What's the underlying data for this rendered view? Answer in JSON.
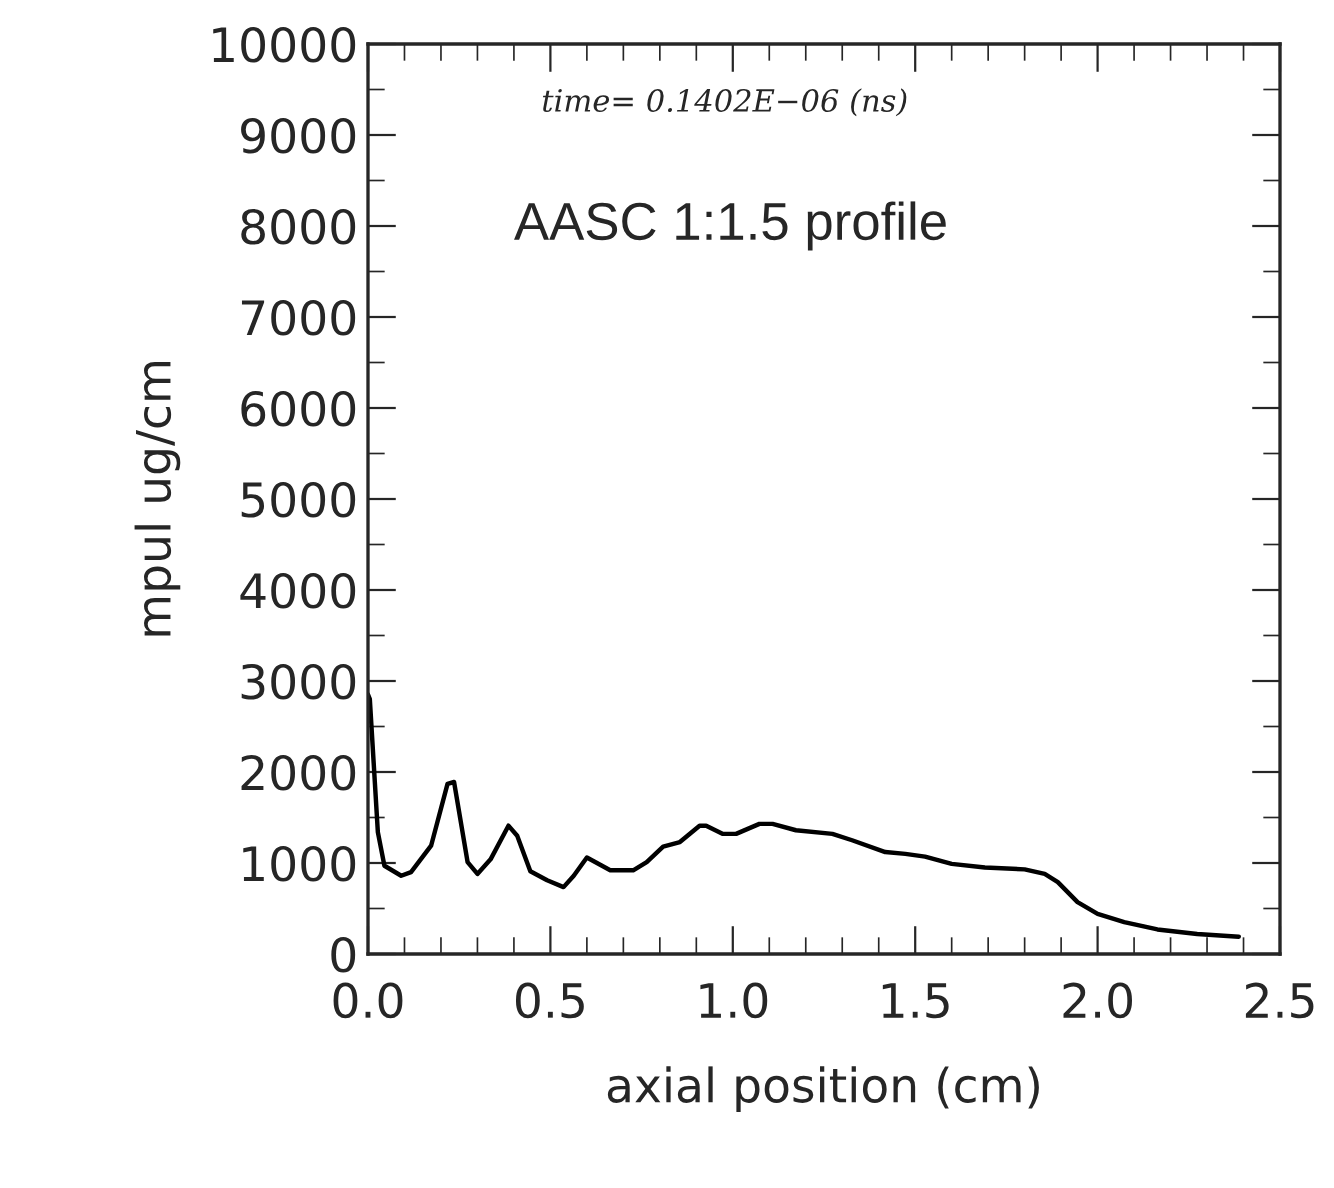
{
  "chart_data": {
    "type": "line",
    "xlabel": "axial position (cm)",
    "ylabel": "mpul ug/cm",
    "annotations": [
      "time= 0.1402E−06 (ns)",
      "AASC 1:1.5 profile"
    ],
    "xlim": [
      0,
      2.5
    ],
    "xticks": [
      {
        "value": 0,
        "label": "0.0"
      },
      {
        "value": 0.5,
        "label": "0.5"
      },
      {
        "value": 1,
        "label": "1.0"
      },
      {
        "value": 1.5,
        "label": "1.5"
      },
      {
        "value": 2,
        "label": "2.0"
      },
      {
        "value": 2.5,
        "label": "2.5"
      }
    ],
    "ylim": [
      0,
      10000
    ],
    "yticks": [
      0,
      1000,
      2000,
      3000,
      4000,
      5000,
      6000,
      7000,
      8000,
      9000,
      10000
    ],
    "grid": false,
    "legend": false,
    "marker": "none",
    "line_style": "solid",
    "series": [
      {
        "color": "#000000",
        "x": [
          0,
          0.005,
          0.027,
          0.045,
          0.091,
          0.118,
          0.173,
          0.218,
          0.236,
          0.273,
          0.3,
          0.336,
          0.385,
          0.409,
          0.445,
          0.491,
          0.536,
          0.564,
          0.6,
          0.664,
          0.727,
          0.764,
          0.809,
          0.855,
          0.909,
          0.927,
          0.973,
          1.009,
          1.073,
          1.109,
          1.173,
          1.273,
          1.327,
          1.418,
          1.473,
          1.527,
          1.6,
          1.691,
          1.8,
          1.855,
          1.891,
          1.945,
          2.0,
          2.073,
          2.164,
          2.273,
          2.387
        ],
        "values": [
          2850,
          2800,
          1340,
          970,
          860,
          900,
          1190,
          1870,
          1890,
          1010,
          880,
          1040,
          1410,
          1300,
          910,
          810,
          735,
          860,
          1060,
          920,
          920,
          1010,
          1180,
          1230,
          1410,
          1410,
          1320,
          1320,
          1430,
          1430,
          1360,
          1320,
          1250,
          1120,
          1100,
          1070,
          990,
          950,
          930,
          880,
          790,
          570,
          440,
          350,
          270,
          220,
          190
        ]
      }
    ]
  }
}
